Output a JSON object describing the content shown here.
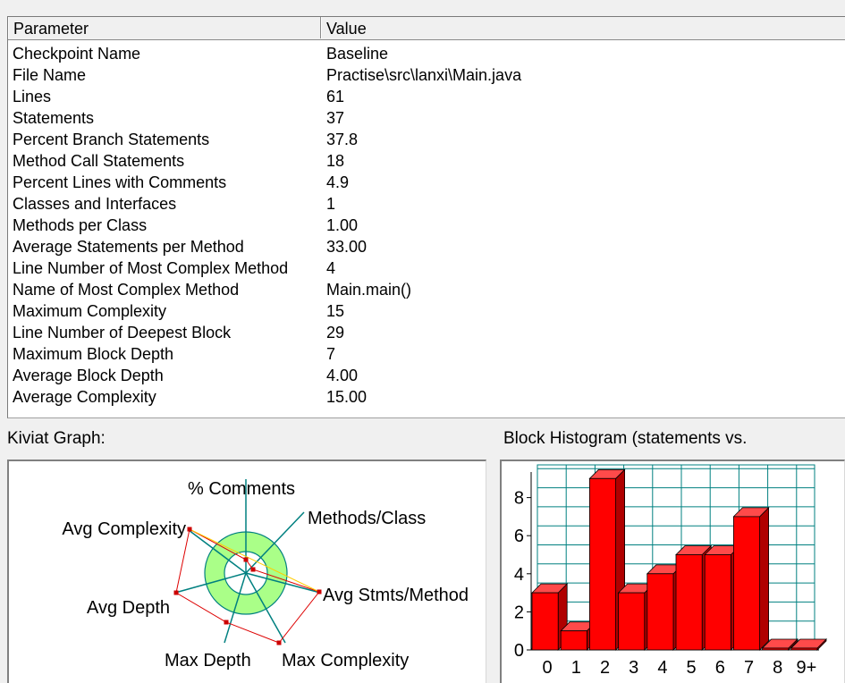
{
  "table": {
    "headers": {
      "parameter": "Parameter",
      "value": "Value"
    },
    "rows": [
      {
        "param": "Checkpoint Name",
        "value": "Baseline"
      },
      {
        "param": "File Name",
        "value": "Practise\\src\\lanxi\\Main.java"
      },
      {
        "param": "Lines",
        "value": "61"
      },
      {
        "param": "Statements",
        "value": "37"
      },
      {
        "param": "Percent Branch Statements",
        "value": "37.8"
      },
      {
        "param": "Method Call Statements",
        "value": "18"
      },
      {
        "param": "Percent Lines with Comments",
        "value": "4.9"
      },
      {
        "param": "Classes and Interfaces",
        "value": "1"
      },
      {
        "param": "Methods per Class",
        "value": "1.00"
      },
      {
        "param": "Average Statements per Method",
        "value": "33.00"
      },
      {
        "param": "Line Number of Most Complex Method",
        "value": "4"
      },
      {
        "param": "Name of Most Complex Method",
        "value": "Main.main()"
      },
      {
        "param": "Maximum Complexity",
        "value": "15"
      },
      {
        "param": "Line Number of Deepest Block",
        "value": "29"
      },
      {
        "param": "Maximum Block Depth",
        "value": "7"
      },
      {
        "param": "Average Block Depth",
        "value": "4.00"
      },
      {
        "param": "Average Complexity",
        "value": "15.00"
      }
    ]
  },
  "kiviat": {
    "label": "Kiviat Graph:",
    "axes": [
      "% Comments",
      "Methods/Class",
      "Avg Stmts/Method",
      "Max Complexity",
      "Max Depth",
      "Avg Depth",
      "Avg Complexity"
    ],
    "colors": {
      "ring": "#aaff88",
      "axis": "#008080",
      "value_line": "#dd0000",
      "marker": "#cc0000"
    }
  },
  "histogram": {
    "label": "Block Histogram (statements vs.",
    "colors": {
      "bar": "#ff0000",
      "bar_side": "#b00000",
      "bar_top": "#ff4a4a",
      "grid": "#008080"
    }
  },
  "chart_data": {
    "type": "bar",
    "title": "Block Histogram (statements vs.",
    "categories": [
      "0",
      "1",
      "2",
      "3",
      "4",
      "5",
      "6",
      "7",
      "8",
      "9+"
    ],
    "values": [
      3,
      1,
      9,
      3,
      4,
      5,
      5,
      7,
      0,
      0
    ],
    "y_ticks": [
      0,
      2,
      4,
      6,
      8
    ],
    "ylim": [
      0,
      9
    ],
    "grid": true
  }
}
